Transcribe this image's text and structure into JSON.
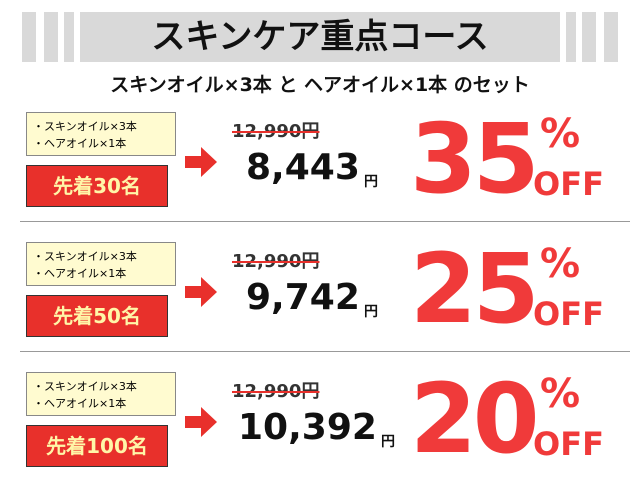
{
  "header": {
    "title": "スキンケア重点コース",
    "subtitle": "スキンオイル×3本 と ヘアオイル×1本 のセット"
  },
  "offers": [
    {
      "items": [
        "・スキンオイル×3本",
        "・ヘアオイル×1本"
      ],
      "badge": "先着30名",
      "original_price": "12,990円",
      "price": "8,443",
      "price_unit": "円",
      "discount": "35",
      "percent": "%",
      "off": "OFF"
    },
    {
      "items": [
        "・スキンオイル×3本",
        "・ヘアオイル×1本"
      ],
      "badge": "先着50名",
      "original_price": "12,990円",
      "price": "9,742",
      "price_unit": "円",
      "discount": "25",
      "percent": "%",
      "off": "OFF"
    },
    {
      "items": [
        "・スキンオイル×3本",
        "・ヘアオイル×1本"
      ],
      "badge": "先着100名",
      "original_price": "12,990円",
      "price": "10,392",
      "price_unit": "円",
      "discount": "20",
      "percent": "%",
      "off": "OFF"
    }
  ]
}
